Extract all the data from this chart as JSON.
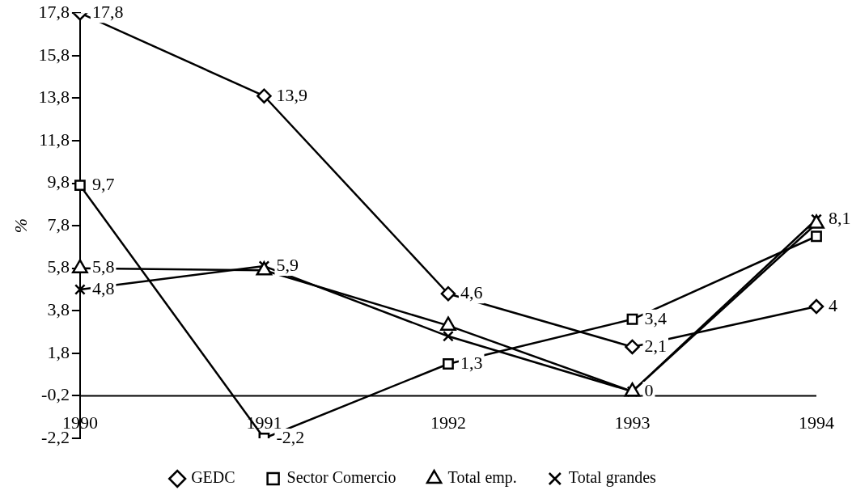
{
  "chart_data": {
    "type": "line",
    "ylabel": "%",
    "categories": [
      "1990",
      "1991",
      "1992",
      "1993",
      "1994"
    ],
    "series": [
      {
        "name": "GEDC",
        "color": "#000000",
        "marker": "diamond",
        "values": [
          17.8,
          13.9,
          4.6,
          2.1,
          4
        ],
        "value_labels": [
          "17,8",
          "13,9",
          "4,6",
          "2,1",
          "4"
        ]
      },
      {
        "name": "Sector Comercio",
        "color": "#000000",
        "marker": "square",
        "values": [
          9.7,
          -2.2,
          1.3,
          3.4,
          7.3
        ],
        "value_labels": [
          "9,7",
          "-2,2",
          "1,3",
          "3,4",
          null
        ]
      },
      {
        "name": "Total emp.",
        "color": "#000000",
        "marker": "triangle",
        "values": [
          5.8,
          5.7,
          3.1,
          0,
          7.9
        ],
        "value_labels": [
          "5,8",
          null,
          null,
          null,
          null
        ]
      },
      {
        "name": "Total grandes",
        "color": "#000000",
        "marker": "cross",
        "values": [
          4.8,
          5.9,
          2.6,
          0,
          8.1
        ],
        "value_labels": [
          "4,8",
          "5,9",
          null,
          "0",
          "8,1"
        ]
      }
    ],
    "ylim": [
      -2.2,
      17.8
    ],
    "yticks": [
      {
        "value": -2.2,
        "label": "-2,2"
      },
      {
        "value": -0.2,
        "label": "-0,2"
      },
      {
        "value": 1.8,
        "label": "1,8"
      },
      {
        "value": 3.8,
        "label": "3,8"
      },
      {
        "value": 5.8,
        "label": "5,8"
      },
      {
        "value": 7.8,
        "label": "7,8"
      },
      {
        "value": 9.8,
        "label": "9,8"
      },
      {
        "value": 11.8,
        "label": "11,8"
      },
      {
        "value": 13.8,
        "label": "13,8"
      },
      {
        "value": 15.8,
        "label": "15,8"
      },
      {
        "value": 17.8,
        "label": "17,8"
      }
    ],
    "ref_lines": [
      {
        "axis": "y",
        "value": -0.2,
        "label": null
      }
    ],
    "grid": false,
    "legend": "bottom",
    "line_style": "solid"
  }
}
